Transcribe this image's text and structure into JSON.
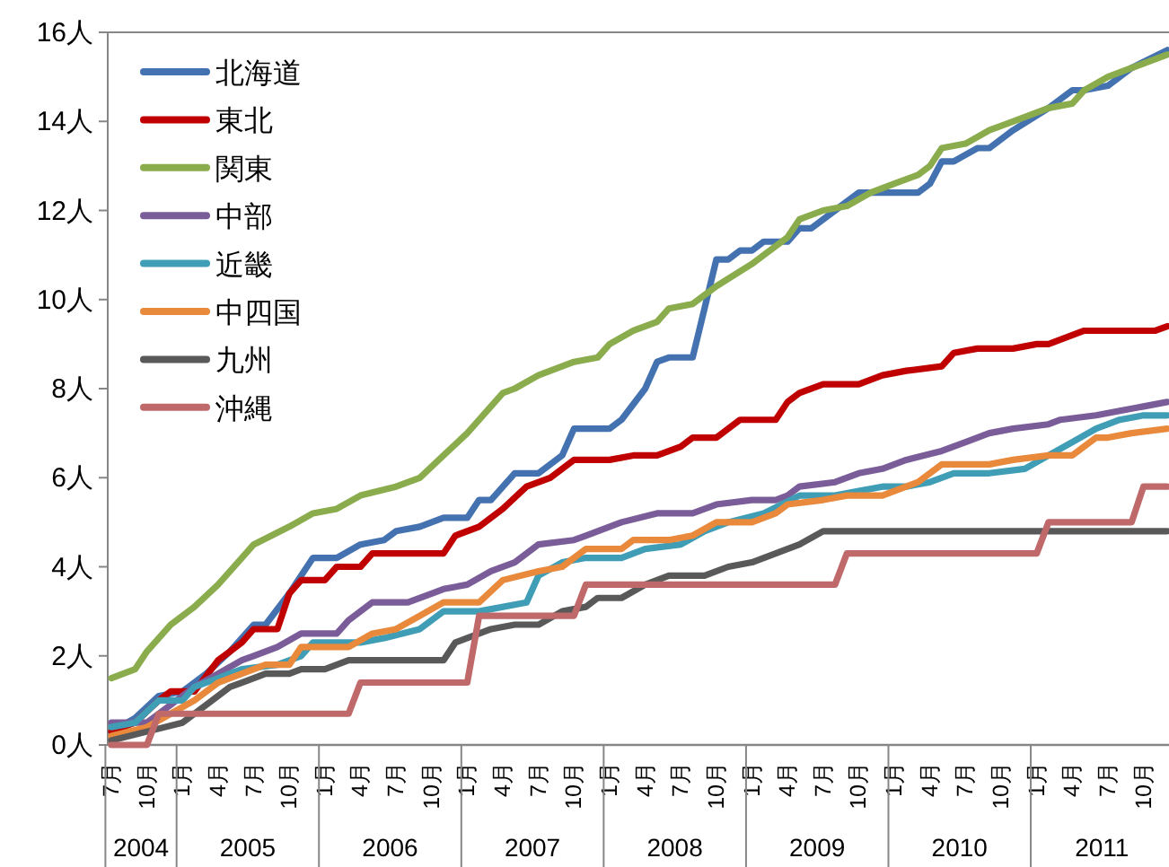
{
  "chart_data": {
    "type": "line",
    "legend": "top left",
    "line_style": "solid",
    "ylim": [
      0,
      16
    ],
    "yticks": [
      {
        "value": 0,
        "label": "0人"
      },
      {
        "value": 2,
        "label": "2人"
      },
      {
        "value": 4,
        "label": "4人"
      },
      {
        "value": 6,
        "label": "6人"
      },
      {
        "value": 8,
        "label": "8人"
      },
      {
        "value": 10,
        "label": "10人"
      },
      {
        "value": 12,
        "label": "12人"
      },
      {
        "value": 14,
        "label": "14人"
      },
      {
        "value": 16,
        "label": "16人"
      }
    ],
    "xlim": [
      "2004-07",
      "2011-12"
    ],
    "xticks": [
      {
        "value": "2004-07",
        "label": "7月"
      },
      {
        "value": "2004-10",
        "label": "10月"
      },
      {
        "value": "2005-01",
        "label": "1月"
      },
      {
        "value": "2005-04",
        "label": "4月"
      },
      {
        "value": "2005-07",
        "label": "7月"
      },
      {
        "value": "2005-10",
        "label": "10月"
      },
      {
        "value": "2006-01",
        "label": "1月"
      },
      {
        "value": "2006-04",
        "label": "4月"
      },
      {
        "value": "2006-07",
        "label": "7月"
      },
      {
        "value": "2006-10",
        "label": "10月"
      },
      {
        "value": "2007-01",
        "label": "1月"
      },
      {
        "value": "2007-04",
        "label": "4月"
      },
      {
        "value": "2007-07",
        "label": "7月"
      },
      {
        "value": "2007-10",
        "label": "10月"
      },
      {
        "value": "2008-01",
        "label": "1月"
      },
      {
        "value": "2008-04",
        "label": "4月"
      },
      {
        "value": "2008-07",
        "label": "7月"
      },
      {
        "value": "2008-10",
        "label": "10月"
      },
      {
        "value": "2009-01",
        "label": "1月"
      },
      {
        "value": "2009-04",
        "label": "4月"
      },
      {
        "value": "2009-07",
        "label": "7月"
      },
      {
        "value": "2009-10",
        "label": "10月"
      },
      {
        "value": "2010-01",
        "label": "1月"
      },
      {
        "value": "2010-04",
        "label": "4月"
      },
      {
        "value": "2010-07",
        "label": "7月"
      },
      {
        "value": "2010-10",
        "label": "10月"
      },
      {
        "value": "2011-01",
        "label": "1月"
      },
      {
        "value": "2011-04",
        "label": "4月"
      },
      {
        "value": "2011-07",
        "label": "7月"
      },
      {
        "value": "2011-10",
        "label": "10月"
      }
    ],
    "annotations": [
      "2004",
      "2005",
      "2006",
      "2007",
      "2008",
      "2009",
      "2010",
      "2011"
    ],
    "series": [
      {
        "name": "北海道",
        "color": "#4472b0",
        "x": [
          "2004-07",
          "2004-09",
          "2004-11",
          "2005-01",
          "2005-03",
          "2005-05",
          "2005-07",
          "2005-08",
          "2005-10",
          "2005-12",
          "2006-02",
          "2006-04",
          "2006-06",
          "2006-07",
          "2006-09",
          "2006-11",
          "2007-01",
          "2007-02",
          "2007-03",
          "2007-05",
          "2007-07",
          "2007-09",
          "2007-10",
          "2008-01",
          "2008-02",
          "2008-04",
          "2008-05",
          "2008-06",
          "2008-08",
          "2008-10",
          "2008-11",
          "2008-12",
          "2009-01",
          "2009-02",
          "2009-04",
          "2009-05",
          "2009-06",
          "2009-08",
          "2009-10",
          "2010-03",
          "2010-04",
          "2010-05",
          "2010-06",
          "2010-08",
          "2010-09",
          "2010-11",
          "2011-02",
          "2011-04",
          "2011-05",
          "2011-07",
          "2011-09",
          "2011-12"
        ],
        "values": [
          0.3,
          0.6,
          1.1,
          1.2,
          1.6,
          2.1,
          2.7,
          2.7,
          3.4,
          4.2,
          4.2,
          4.5,
          4.6,
          4.8,
          4.9,
          5.1,
          5.1,
          5.5,
          5.5,
          6.1,
          6.1,
          6.5,
          7.1,
          7.1,
          7.3,
          8.0,
          8.6,
          8.7,
          8.7,
          10.9,
          10.9,
          11.1,
          11.1,
          11.3,
          11.3,
          11.6,
          11.6,
          12.0,
          12.4,
          12.4,
          12.6,
          13.1,
          13.1,
          13.4,
          13.4,
          13.8,
          14.3,
          14.7,
          14.7,
          14.8,
          15.2,
          15.6
        ]
      },
      {
        "name": "東北",
        "color": "#c00000",
        "x": [
          "2004-07",
          "2004-09",
          "2004-11",
          "2004-12",
          "2005-02",
          "2005-04",
          "2005-06",
          "2005-07",
          "2005-09",
          "2005-10",
          "2005-11",
          "2006-01",
          "2006-02",
          "2006-04",
          "2006-05",
          "2006-11",
          "2006-12",
          "2007-02",
          "2007-04",
          "2007-06",
          "2007-08",
          "2007-10",
          "2008-01",
          "2008-03",
          "2008-05",
          "2008-07",
          "2008-08",
          "2008-10",
          "2008-12",
          "2009-03",
          "2009-04",
          "2009-05",
          "2009-07",
          "2009-10",
          "2009-12",
          "2010-02",
          "2010-05",
          "2010-06",
          "2010-08",
          "2010-11",
          "2011-01",
          "2011-02",
          "2011-04",
          "2011-05",
          "2011-11",
          "2011-12"
        ],
        "values": [
          0.3,
          0.5,
          1.0,
          1.2,
          1.2,
          1.9,
          2.3,
          2.6,
          2.6,
          3.4,
          3.7,
          3.7,
          4.0,
          4.0,
          4.3,
          4.3,
          4.7,
          4.9,
          5.3,
          5.8,
          6.0,
          6.4,
          6.4,
          6.5,
          6.5,
          6.7,
          6.9,
          6.9,
          7.3,
          7.3,
          7.7,
          7.9,
          8.1,
          8.1,
          8.3,
          8.4,
          8.5,
          8.8,
          8.9,
          8.9,
          9.0,
          9.0,
          9.2,
          9.3,
          9.3,
          9.4
        ]
      },
      {
        "name": "関東",
        "color": "#8aac4c",
        "x": [
          "2004-07",
          "2004-09",
          "2004-10",
          "2004-12",
          "2005-02",
          "2005-04",
          "2005-06",
          "2005-07",
          "2005-10",
          "2005-12",
          "2006-02",
          "2006-04",
          "2006-07",
          "2006-09",
          "2006-11",
          "2007-01",
          "2007-04",
          "2007-05",
          "2007-07",
          "2007-10",
          "2007-12",
          "2008-01",
          "2008-03",
          "2008-05",
          "2008-06",
          "2008-08",
          "2008-10",
          "2009-01",
          "2009-02",
          "2009-04",
          "2009-05",
          "2009-07",
          "2009-09",
          "2009-11",
          "2010-01",
          "2010-03",
          "2010-04",
          "2010-05",
          "2010-07",
          "2010-09",
          "2010-11",
          "2011-01",
          "2011-02",
          "2011-04",
          "2011-05",
          "2011-07",
          "2011-09",
          "2011-12"
        ],
        "values": [
          1.5,
          1.7,
          2.1,
          2.7,
          3.1,
          3.6,
          4.2,
          4.5,
          4.9,
          5.2,
          5.3,
          5.6,
          5.8,
          6.0,
          6.5,
          7.0,
          7.9,
          8.0,
          8.3,
          8.6,
          8.7,
          9.0,
          9.3,
          9.5,
          9.8,
          9.9,
          10.3,
          10.8,
          11.0,
          11.4,
          11.8,
          12.0,
          12.1,
          12.4,
          12.6,
          12.8,
          13.0,
          13.4,
          13.5,
          13.8,
          14.0,
          14.2,
          14.3,
          14.4,
          14.7,
          15.0,
          15.2,
          15.5
        ]
      },
      {
        "name": "中部",
        "color": "#7a5c98",
        "x": [
          "2004-07",
          "2004-10",
          "2004-12",
          "2005-02",
          "2005-04",
          "2005-06",
          "2005-07",
          "2005-09",
          "2005-11",
          "2006-02",
          "2006-03",
          "2006-05",
          "2006-08",
          "2006-10",
          "2006-11",
          "2007-01",
          "2007-03",
          "2007-05",
          "2007-07",
          "2007-10",
          "2007-11",
          "2007-12",
          "2008-02",
          "2008-05",
          "2008-08",
          "2008-10",
          "2009-01",
          "2009-03",
          "2009-04",
          "2009-05",
          "2009-08",
          "2009-10",
          "2009-12",
          "2010-02",
          "2010-05",
          "2010-07",
          "2010-09",
          "2010-11",
          "2011-02",
          "2011-03",
          "2011-06",
          "2011-08",
          "2011-10",
          "2011-12"
        ],
        "values": [
          0.5,
          0.5,
          0.9,
          1.3,
          1.6,
          1.9,
          2.0,
          2.2,
          2.5,
          2.5,
          2.8,
          3.2,
          3.2,
          3.4,
          3.5,
          3.6,
          3.9,
          4.1,
          4.5,
          4.6,
          4.7,
          4.8,
          5.0,
          5.2,
          5.2,
          5.4,
          5.5,
          5.5,
          5.6,
          5.8,
          5.9,
          6.1,
          6.2,
          6.4,
          6.6,
          6.8,
          7.0,
          7.1,
          7.2,
          7.3,
          7.4,
          7.5,
          7.6,
          7.7
        ]
      },
      {
        "name": "近畿",
        "color": "#3f9db5",
        "x": [
          "2004-07",
          "2004-09",
          "2004-11",
          "2005-01",
          "2005-02",
          "2005-04",
          "2005-06",
          "2005-09",
          "2005-11",
          "2005-12",
          "2006-04",
          "2006-06",
          "2006-09",
          "2006-11",
          "2007-02",
          "2007-06",
          "2007-07",
          "2007-09",
          "2007-11",
          "2008-02",
          "2008-04",
          "2008-07",
          "2008-09",
          "2008-11",
          "2009-02",
          "2009-05",
          "2009-08",
          "2009-10",
          "2009-12",
          "2010-02",
          "2010-04",
          "2010-06",
          "2010-09",
          "2010-12",
          "2011-02",
          "2011-04",
          "2011-06",
          "2011-08",
          "2011-10",
          "2011-12"
        ],
        "values": [
          0.4,
          0.5,
          1.0,
          1.0,
          1.3,
          1.5,
          1.7,
          1.8,
          2.0,
          2.3,
          2.3,
          2.4,
          2.6,
          3.0,
          3.0,
          3.2,
          3.8,
          4.1,
          4.2,
          4.2,
          4.4,
          4.5,
          4.8,
          5.0,
          5.2,
          5.6,
          5.6,
          5.7,
          5.8,
          5.8,
          5.9,
          6.1,
          6.1,
          6.2,
          6.5,
          6.8,
          7.1,
          7.3,
          7.4,
          7.4
        ]
      },
      {
        "name": "中四国",
        "color": "#e8893c",
        "x": [
          "2004-07",
          "2004-10",
          "2004-12",
          "2005-02",
          "2005-04",
          "2005-06",
          "2005-08",
          "2005-10",
          "2005-11",
          "2006-03",
          "2006-05",
          "2006-07",
          "2006-09",
          "2006-11",
          "2007-02",
          "2007-04",
          "2007-07",
          "2007-09",
          "2007-11",
          "2008-02",
          "2008-03",
          "2008-06",
          "2008-08",
          "2008-10",
          "2009-01",
          "2009-03",
          "2009-04",
          "2009-07",
          "2009-09",
          "2009-12",
          "2010-02",
          "2010-03",
          "2010-05",
          "2010-09",
          "2010-11",
          "2011-02",
          "2011-04",
          "2011-06",
          "2011-07",
          "2011-09",
          "2011-12"
        ],
        "values": [
          0.2,
          0.4,
          0.7,
          1.0,
          1.4,
          1.6,
          1.8,
          1.8,
          2.2,
          2.2,
          2.5,
          2.6,
          2.9,
          3.2,
          3.2,
          3.7,
          3.9,
          4.0,
          4.4,
          4.4,
          4.6,
          4.6,
          4.7,
          5.0,
          5.0,
          5.2,
          5.4,
          5.5,
          5.6,
          5.6,
          5.8,
          5.9,
          6.3,
          6.3,
          6.4,
          6.5,
          6.5,
          6.9,
          6.9,
          7.0,
          7.1
        ]
      },
      {
        "name": "九州",
        "color": "#595959",
        "x": [
          "2004-07",
          "2004-10",
          "2005-01",
          "2005-03",
          "2005-05",
          "2005-06",
          "2005-08",
          "2005-10",
          "2005-11",
          "2006-01",
          "2006-03",
          "2006-11",
          "2006-12",
          "2007-03",
          "2007-05",
          "2007-07",
          "2007-09",
          "2007-11",
          "2007-12",
          "2008-02",
          "2008-04",
          "2008-06",
          "2008-09",
          "2008-11",
          "2009-01",
          "2009-03",
          "2009-04",
          "2009-05",
          "2009-07",
          "2011-12"
        ],
        "values": [
          0.1,
          0.3,
          0.5,
          0.9,
          1.3,
          1.4,
          1.6,
          1.6,
          1.7,
          1.7,
          1.9,
          1.9,
          2.3,
          2.6,
          2.7,
          2.7,
          3.0,
          3.1,
          3.3,
          3.3,
          3.6,
          3.8,
          3.8,
          4.0,
          4.1,
          4.3,
          4.4,
          4.5,
          4.8,
          4.8
        ]
      },
      {
        "name": "沖縄",
        "color": "#c0696a",
        "x": [
          "2004-07",
          "2004-10",
          "2004-11",
          "2006-03",
          "2006-04",
          "2007-01",
          "2007-02",
          "2007-10",
          "2007-11",
          "2009-08",
          "2009-09",
          "2011-01",
          "2011-02",
          "2011-09",
          "2011-10",
          "2011-12"
        ],
        "values": [
          0,
          0,
          0.7,
          0.7,
          1.4,
          1.4,
          2.9,
          2.9,
          3.6,
          3.6,
          4.3,
          4.3,
          5.0,
          5.0,
          5.8,
          5.8
        ]
      }
    ]
  }
}
